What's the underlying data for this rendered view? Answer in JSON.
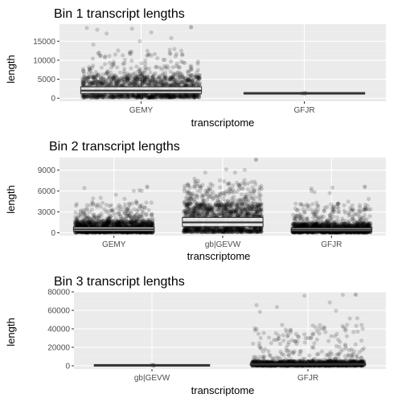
{
  "chart_data": [
    {
      "type": "box",
      "title": "Bin 1 transcript lengths",
      "xlabel": "transcriptome",
      "ylabel": "length",
      "ylim": [
        -800,
        19500
      ],
      "yticks": [
        0,
        5000,
        10000,
        15000
      ],
      "yticklabels": [
        "0",
        "5000",
        "10000",
        "15000"
      ],
      "categories": [
        "GEMY",
        "GFJR"
      ],
      "boxes": [
        {
          "category": "GEMY",
          "q1": 1300,
          "median": 2000,
          "q3": 3000,
          "whisker_low": 200,
          "whisker_high": 5500,
          "max_point": 18700,
          "point_count": "dense"
        },
        {
          "category": "GFJR",
          "q1": 1250,
          "median": 1300,
          "q3": 1350,
          "whisker_low": 1250,
          "whisker_high": 1350,
          "max_point": 1350,
          "point_count": "few"
        }
      ],
      "grid": true
    },
    {
      "type": "box",
      "title": "Bin 2 transcript lengths",
      "xlabel": "transcriptome",
      "ylabel": "length",
      "ylim": [
        -400,
        10800
      ],
      "yticks": [
        0,
        3000,
        6000,
        9000
      ],
      "yticklabels": [
        "0",
        "3000",
        "6000",
        "9000"
      ],
      "categories": [
        "GEMY",
        "gb|GEVW",
        "GFJR"
      ],
      "boxes": [
        {
          "category": "GEMY",
          "q1": 250,
          "median": 500,
          "q3": 800,
          "whisker_low": 50,
          "whisker_high": 1600,
          "max_point": 6600,
          "point_count": "dense"
        },
        {
          "category": "gb|GEVW",
          "q1": 900,
          "median": 1500,
          "q3": 2200,
          "whisker_low": 100,
          "whisker_high": 4000,
          "max_point": 10500,
          "point_count": "dense"
        },
        {
          "category": "GFJR",
          "q1": 250,
          "median": 450,
          "q3": 700,
          "whisker_low": 50,
          "whisker_high": 1300,
          "max_point": 6600,
          "point_count": "dense"
        }
      ],
      "grid": true
    },
    {
      "type": "box",
      "title": "Bin 3 transcript lengths",
      "xlabel": "transcriptome",
      "ylabel": "length",
      "ylim": [
        -3500,
        80000
      ],
      "yticks": [
        0,
        20000,
        40000,
        60000,
        80000
      ],
      "yticklabels": [
        "0",
        "20000",
        "40000",
        "60000",
        "80000"
      ],
      "categories": [
        "gb|GEVW",
        "GFJR"
      ],
      "boxes": [
        {
          "category": "gb|GEVW",
          "q1": 400,
          "median": 500,
          "q3": 600,
          "whisker_low": 300,
          "whisker_high": 800,
          "max_point": 900,
          "point_count": "few"
        },
        {
          "category": "GFJR",
          "q1": 800,
          "median": 1500,
          "q3": 2500,
          "whisker_low": 100,
          "whisker_high": 5000,
          "max_point": 77000,
          "point_count": "dense"
        }
      ],
      "grid": true
    }
  ],
  "colors": {
    "panel_background": "#ebebeb",
    "grid_major": "#ffffff",
    "grid_minor": "#f2f2f2",
    "points": "#000000",
    "box_fill": "#ffffff",
    "box_line": "#333333",
    "tick_text": "#4d4d4d"
  }
}
